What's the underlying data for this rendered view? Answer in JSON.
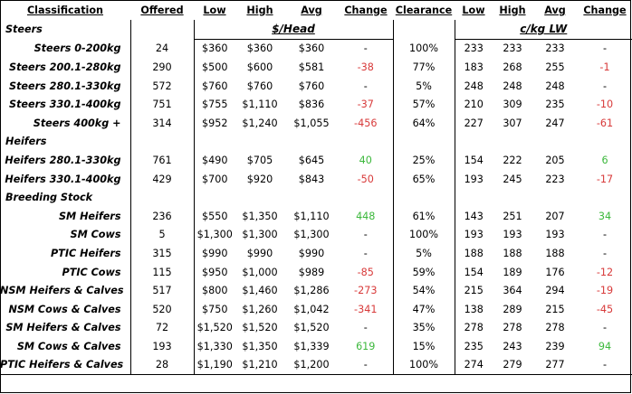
{
  "header": {
    "classification": "Classification",
    "offered": "Offered",
    "low": "Low",
    "high": "High",
    "avg": "Avg",
    "change": "Change",
    "clearance": "Clearance",
    "low2": "Low",
    "high2": "High",
    "avg2": "Avg",
    "change2": "Change"
  },
  "units": {
    "head": "$/Head",
    "lw": "c/kg LW"
  },
  "rows": [
    {
      "type": "section",
      "label": "Steers"
    },
    {
      "type": "data",
      "label": "Steers 0-200kg",
      "offered": "24",
      "low": "$360",
      "high": "$360",
      "avg": "$360",
      "change": "-",
      "change_sign": "none",
      "clearance": "100%",
      "low2": "233",
      "high2": "233",
      "avg2": "233",
      "change2": "-",
      "change2_sign": "none"
    },
    {
      "type": "data",
      "label": "Steers 200.1-280kg",
      "offered": "290",
      "low": "$500",
      "high": "$600",
      "avg": "$581",
      "change": "-38",
      "change_sign": "neg",
      "clearance": "77%",
      "low2": "183",
      "high2": "268",
      "avg2": "255",
      "change2": "-1",
      "change2_sign": "neg"
    },
    {
      "type": "data",
      "label": "Steers 280.1-330kg",
      "offered": "572",
      "low": "$760",
      "high": "$760",
      "avg": "$760",
      "change": "-",
      "change_sign": "none",
      "clearance": "5%",
      "low2": "248",
      "high2": "248",
      "avg2": "248",
      "change2": "-",
      "change2_sign": "none"
    },
    {
      "type": "data",
      "label": "Steers 330.1-400kg",
      "offered": "751",
      "low": "$755",
      "high": "$1,110",
      "avg": "$836",
      "change": "-37",
      "change_sign": "neg",
      "clearance": "57%",
      "low2": "210",
      "high2": "309",
      "avg2": "235",
      "change2": "-10",
      "change2_sign": "neg"
    },
    {
      "type": "data",
      "label": "Steers 400kg +",
      "offered": "314",
      "low": "$952",
      "high": "$1,240",
      "avg": "$1,055",
      "change": "-456",
      "change_sign": "neg",
      "clearance": "64%",
      "low2": "227",
      "high2": "307",
      "avg2": "247",
      "change2": "-61",
      "change2_sign": "neg"
    },
    {
      "type": "section",
      "label": "Heifers"
    },
    {
      "type": "data",
      "label": "Heifers 280.1-330kg",
      "offered": "761",
      "low": "$490",
      "high": "$705",
      "avg": "$645",
      "change": "40",
      "change_sign": "pos",
      "clearance": "25%",
      "low2": "154",
      "high2": "222",
      "avg2": "205",
      "change2": "6",
      "change2_sign": "pos"
    },
    {
      "type": "data",
      "label": "Heifers 330.1-400kg",
      "offered": "429",
      "low": "$700",
      "high": "$920",
      "avg": "$843",
      "change": "-50",
      "change_sign": "neg",
      "clearance": "65%",
      "low2": "193",
      "high2": "245",
      "avg2": "223",
      "change2": "-17",
      "change2_sign": "neg"
    },
    {
      "type": "section",
      "label": "Breeding Stock"
    },
    {
      "type": "data",
      "label": "SM Heifers",
      "offered": "236",
      "low": "$550",
      "high": "$1,350",
      "avg": "$1,110",
      "change": "448",
      "change_sign": "pos",
      "clearance": "61%",
      "low2": "143",
      "high2": "251",
      "avg2": "207",
      "change2": "34",
      "change2_sign": "pos"
    },
    {
      "type": "data",
      "label": "SM Cows",
      "offered": "5",
      "low": "$1,300",
      "high": "$1,300",
      "avg": "$1,300",
      "change": "-",
      "change_sign": "none",
      "clearance": "100%",
      "low2": "193",
      "high2": "193",
      "avg2": "193",
      "change2": "-",
      "change2_sign": "none"
    },
    {
      "type": "data",
      "label": "PTIC Heifers",
      "offered": "315",
      "low": "$990",
      "high": "$990",
      "avg": "$990",
      "change": "-",
      "change_sign": "none",
      "clearance": "5%",
      "low2": "188",
      "high2": "188",
      "avg2": "188",
      "change2": "-",
      "change2_sign": "none"
    },
    {
      "type": "data",
      "label": "PTIC Cows",
      "offered": "115",
      "low": "$950",
      "high": "$1,000",
      "avg": "$989",
      "change": "-85",
      "change_sign": "neg",
      "clearance": "59%",
      "low2": "154",
      "high2": "189",
      "avg2": "176",
      "change2": "-12",
      "change2_sign": "neg"
    },
    {
      "type": "data",
      "label": "NSM Heifers & Calves",
      "offered": "517",
      "low": "$800",
      "high": "$1,460",
      "avg": "$1,286",
      "change": "-273",
      "change_sign": "neg",
      "clearance": "54%",
      "low2": "215",
      "high2": "364",
      "avg2": "294",
      "change2": "-19",
      "change2_sign": "neg"
    },
    {
      "type": "data",
      "label": "NSM Cows & Calves",
      "offered": "520",
      "low": "$750",
      "high": "$1,260",
      "avg": "$1,042",
      "change": "-341",
      "change_sign": "neg",
      "clearance": "47%",
      "low2": "138",
      "high2": "289",
      "avg2": "215",
      "change2": "-45",
      "change2_sign": "neg"
    },
    {
      "type": "data",
      "label": "SM Heifers & Calves",
      "offered": "72",
      "low": "$1,520",
      "high": "$1,520",
      "avg": "$1,520",
      "change": "-",
      "change_sign": "none",
      "clearance": "35%",
      "low2": "278",
      "high2": "278",
      "avg2": "278",
      "change2": "-",
      "change2_sign": "none"
    },
    {
      "type": "data",
      "label": "SM Cows & Calves",
      "offered": "193",
      "low": "$1,330",
      "high": "$1,350",
      "avg": "$1,339",
      "change": "619",
      "change_sign": "pos",
      "clearance": "15%",
      "low2": "235",
      "high2": "243",
      "avg2": "239",
      "change2": "94",
      "change2_sign": "pos"
    },
    {
      "type": "data",
      "label": "PTIC Heifers & Calves",
      "offered": "28",
      "low": "$1,190",
      "high": "$1,210",
      "avg": "$1,200",
      "change": "-",
      "change_sign": "none",
      "clearance": "100%",
      "low2": "274",
      "high2": "279",
      "avg2": "277",
      "change2": "-",
      "change2_sign": "none"
    }
  ]
}
